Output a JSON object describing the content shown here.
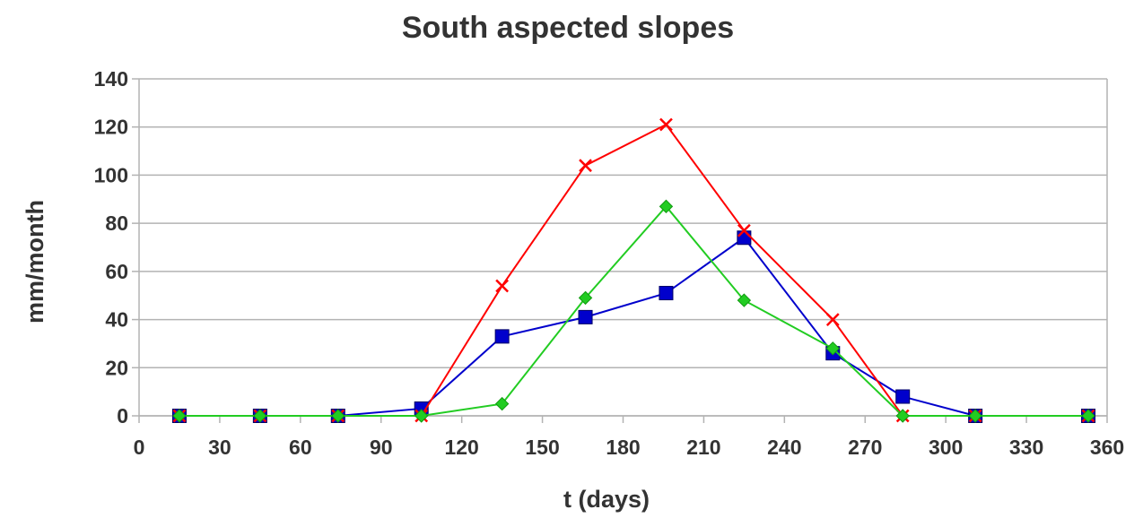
{
  "chart_data": {
    "type": "line",
    "title": "South aspected slopes",
    "xlabel": "t (days)",
    "ylabel": "mm/month",
    "xlim": [
      0,
      360
    ],
    "ylim": [
      0,
      140
    ],
    "x_ticks": [
      0,
      30,
      60,
      90,
      120,
      150,
      180,
      210,
      240,
      270,
      300,
      330,
      360
    ],
    "y_ticks": [
      0,
      20,
      40,
      60,
      80,
      100,
      120,
      140
    ],
    "grid": "horizontal",
    "legend": "none",
    "x": [
      15,
      45,
      74,
      105,
      135,
      166,
      196,
      225,
      258,
      284,
      311,
      353
    ],
    "series": [
      {
        "color": "#0000cc",
        "marker": "square",
        "values": [
          0,
          0,
          0,
          3,
          33,
          41,
          51,
          74,
          26,
          8,
          0,
          0
        ]
      },
      {
        "color": "#ff0000",
        "marker": "cross",
        "values": [
          0,
          0,
          0,
          0,
          54,
          104,
          121,
          77,
          40,
          0,
          0,
          0
        ]
      },
      {
        "color": "#22cc22",
        "marker": "diamond",
        "values": [
          0,
          0,
          0,
          0,
          5,
          49,
          87,
          48,
          28,
          0,
          0,
          0
        ]
      }
    ],
    "colors": {
      "grid": "#b3b3b3",
      "frame": "#b3b3b3",
      "text": "#333333"
    }
  }
}
